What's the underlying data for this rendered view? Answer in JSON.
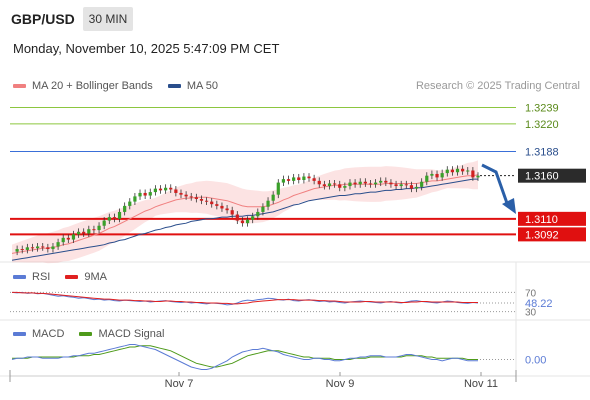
{
  "header": {
    "symbol": "GBP/USD",
    "interval": "30 MIN",
    "datetime": "Monday, November 10, 2025 5:47:09 PM CET",
    "credit": "Research © 2025 Trading Central"
  },
  "legends": {
    "price": [
      {
        "label": "MA 20 + Bollinger Bands",
        "color": "#f08080"
      },
      {
        "label": "MA 50",
        "color": "#2a4e8c"
      }
    ],
    "rsi": [
      {
        "label": "RSI",
        "color": "#5b7bd5"
      },
      {
        "label": "9MA",
        "color": "#e02020"
      }
    ],
    "macd": [
      {
        "label": "MACD",
        "color": "#5b7bd5"
      },
      {
        "label": "MACD Signal",
        "color": "#4e9a1a"
      }
    ]
  },
  "chart_data": {
    "type": "line",
    "description_series": "GBP/USD 30-minute candles with MA20, Bollinger Bands, MA50, RSI and MACD",
    "price_ylim": [
      1.306,
      1.325
    ],
    "levels": [
      {
        "value": 1.3239,
        "label": "1.3239",
        "kind": "resistance",
        "color": "#8cc63f"
      },
      {
        "value": 1.322,
        "label": "1.3220",
        "kind": "resistance",
        "color": "#8cc63f"
      },
      {
        "value": 1.3188,
        "label": "1.3188",
        "kind": "pivot",
        "color": "#3a6fd8"
      },
      {
        "value": 1.316,
        "label": "1.3160",
        "kind": "last",
        "color": "#222222"
      },
      {
        "value": 1.311,
        "label": "1.3110",
        "kind": "support",
        "color": "#e01010"
      },
      {
        "value": 1.3092,
        "label": "1.3092",
        "kind": "support",
        "color": "#e01010"
      }
    ],
    "close": [
      1.3072,
      1.3075,
      1.3074,
      1.3077,
      1.3076,
      1.3078,
      1.3077,
      1.3075,
      1.3078,
      1.3083,
      1.3088,
      1.3086,
      1.3092,
      1.3095,
      1.3093,
      1.3098,
      1.3097,
      1.3102,
      1.3108,
      1.3112,
      1.311,
      1.3118,
      1.3125,
      1.313,
      1.3136,
      1.314,
      1.3137,
      1.3141,
      1.3145,
      1.3143,
      1.3146,
      1.3144,
      1.314,
      1.3138,
      1.3136,
      1.3135,
      1.3133,
      1.3131,
      1.313,
      1.3127,
      1.3125,
      1.3122,
      1.312,
      1.3115,
      1.3108,
      1.3105,
      1.3109,
      1.3113,
      1.3118,
      1.3124,
      1.3131,
      1.3138,
      1.3152,
      1.3156,
      1.3154,
      1.3158,
      1.3155,
      1.3159,
      1.3157,
      1.3154,
      1.315,
      1.3148,
      1.3151,
      1.315,
      1.3146,
      1.3148,
      1.3152,
      1.315,
      1.3153,
      1.3151,
      1.315,
      1.3152,
      1.3154,
      1.3152,
      1.315,
      1.3148,
      1.315,
      1.3149,
      1.3145,
      1.3147,
      1.3153,
      1.316,
      1.3162,
      1.3158,
      1.3163,
      1.3167,
      1.3164,
      1.3168,
      1.3165,
      1.3166,
      1.3158,
      1.316
    ],
    "ma20": [
      1.307,
      1.3071,
      1.3072,
      1.3073,
      1.3074,
      1.3075,
      1.3076,
      1.3076,
      1.3077,
      1.3078,
      1.308,
      1.3081,
      1.3083,
      1.3085,
      1.3087,
      1.3089,
      1.3091,
      1.3093,
      1.3096,
      1.3099,
      1.3101,
      1.3104,
      1.3107,
      1.311,
      1.3113,
      1.3116,
      1.3119,
      1.3121,
      1.3124,
      1.3126,
      1.3128,
      1.313,
      1.3132,
      1.3133,
      1.3134,
      1.3134,
      1.3135,
      1.3135,
      1.3135,
      1.3134,
      1.3133,
      1.3132,
      1.3131,
      1.3129,
      1.3127,
      1.3125,
      1.3124,
      1.3124,
      1.3124,
      1.3124,
      1.3125,
      1.3127,
      1.3129,
      1.3132,
      1.3134,
      1.3137,
      1.3139,
      1.3141,
      1.3143,
      1.3145,
      1.3146,
      1.3147,
      1.3148,
      1.3149,
      1.3149,
      1.315,
      1.315,
      1.315,
      1.315,
      1.315,
      1.315,
      1.315,
      1.315,
      1.3151,
      1.3151,
      1.3151,
      1.3151,
      1.3151,
      1.3151,
      1.3151,
      1.3152,
      1.3153,
      1.3154,
      1.3154,
      1.3155,
      1.3156,
      1.3157,
      1.3158,
      1.3159,
      1.316,
      1.316,
      1.3161
    ],
    "ma50": [
      1.3062,
      1.3063,
      1.3064,
      1.3065,
      1.3066,
      1.3067,
      1.3068,
      1.3069,
      1.307,
      1.3071,
      1.3072,
      1.3073,
      1.3074,
      1.3075,
      1.3076,
      1.3077,
      1.3078,
      1.3079,
      1.308,
      1.3082,
      1.3083,
      1.3085,
      1.3086,
      1.3088,
      1.309,
      1.3092,
      1.3093,
      1.3095,
      1.3097,
      1.3098,
      1.31,
      1.3101,
      1.3103,
      1.3104,
      1.3105,
      1.3107,
      1.3108,
      1.3109,
      1.311,
      1.311,
      1.3111,
      1.3112,
      1.3112,
      1.3113,
      1.3113,
      1.3113,
      1.3114,
      1.3114,
      1.3115,
      1.3116,
      1.3117,
      1.3118,
      1.312,
      1.3122,
      1.3124,
      1.3126,
      1.3127,
      1.3129,
      1.3131,
      1.3132,
      1.3133,
      1.3134,
      1.3135,
      1.3136,
      1.3137,
      1.3137,
      1.3138,
      1.3139,
      1.3139,
      1.314,
      1.3141,
      1.3141,
      1.3142,
      1.3143,
      1.3143,
      1.3144,
      1.3144,
      1.3145,
      1.3145,
      1.3146,
      1.3146,
      1.3147,
      1.3148,
      1.3149,
      1.315,
      1.3151,
      1.3152,
      1.3153,
      1.3154,
      1.3155,
      1.3156,
      1.3156
    ],
    "bb_width": 0.0017,
    "x_ticks": [
      "Nov 7",
      "Nov 9",
      "Nov 11"
    ],
    "rsi": {
      "ylim": [
        25,
        75
      ],
      "levels": [
        70,
        30
      ],
      "level_labels": [
        "70",
        "30"
      ],
      "last_label": "48.22",
      "values": [
        70,
        69,
        70,
        68,
        69,
        67,
        68,
        66,
        64,
        62,
        63,
        61,
        60,
        58,
        59,
        57,
        55,
        56,
        54,
        55,
        53,
        52,
        54,
        53,
        52,
        51,
        52,
        50,
        51,
        52,
        53,
        51,
        50,
        49,
        50,
        48,
        49,
        47,
        46,
        48,
        47,
        46,
        44,
        45,
        48,
        52,
        54,
        53,
        55,
        56,
        58,
        57,
        55,
        54,
        56,
        53,
        52,
        54,
        55,
        53,
        51,
        52,
        50,
        51,
        49,
        48,
        50,
        51,
        52,
        51,
        50,
        49,
        48,
        50,
        51,
        49,
        48,
        50,
        52,
        53,
        51,
        50,
        49,
        48,
        50,
        52,
        51,
        49,
        48,
        47,
        49,
        48
      ],
      "ma": [
        70,
        70,
        69,
        69,
        69,
        68,
        68,
        67,
        66,
        65,
        64,
        63,
        62,
        61,
        60,
        59,
        58,
        57,
        56,
        56,
        55,
        54,
        54,
        54,
        53,
        53,
        52,
        52,
        51,
        51,
        52,
        52,
        51,
        51,
        50,
        50,
        49,
        49,
        48,
        48,
        48,
        47,
        47,
        46,
        46,
        47,
        48,
        50,
        51,
        52,
        53,
        54,
        55,
        55,
        55,
        55,
        54,
        54,
        54,
        54,
        53,
        53,
        52,
        52,
        51,
        50,
        50,
        50,
        50,
        51,
        51,
        50,
        50,
        50,
        50,
        50,
        49,
        49,
        50,
        50,
        51,
        51,
        50,
        50,
        50,
        50,
        50,
        50,
        49,
        49,
        49,
        49
      ]
    },
    "macd": {
      "ylim": [
        -0.001,
        0.0014
      ],
      "zero_label": "0.00",
      "macd": [
        0.0,
        0.0001,
        0.0001,
        0.0002,
        0.0002,
        0.0002,
        0.0001,
        0.0001,
        0.0001,
        0.0001,
        0.0002,
        0.0002,
        0.0003,
        0.0003,
        0.0004,
        0.0005,
        0.0005,
        0.0006,
        0.0007,
        0.0008,
        0.0009,
        0.001,
        0.0011,
        0.0012,
        0.0012,
        0.0011,
        0.001,
        0.0009,
        0.0008,
        0.0006,
        0.0004,
        0.0002,
        0.0,
        -0.0002,
        -0.0004,
        -0.0006,
        -0.0007,
        -0.0008,
        -0.0008,
        -0.0007,
        -0.0005,
        -0.0003,
        -0.0001,
        0.0002,
        0.0004,
        0.0006,
        0.0007,
        0.0008,
        0.0008,
        0.0009,
        0.0008,
        0.0007,
        0.0006,
        0.0004,
        0.0003,
        0.0002,
        0.0001,
        0.0,
        0.0,
        0.0001,
        0.0001,
        0.0,
        0.0,
        -0.0001,
        -0.0001,
        0.0,
        0.0001,
        0.0001,
        0.0002,
        0.0002,
        0.0003,
        0.0003,
        0.0003,
        0.0002,
        0.0002,
        0.0002,
        0.0003,
        0.0004,
        0.0004,
        0.0003,
        0.0002,
        0.0001,
        0.0,
        0.0,
        -0.0001,
        0.0,
        0.0001,
        0.0001,
        0.0,
        -0.0001,
        -0.0001,
        -0.0001
      ],
      "signal": [
        0.0001,
        0.0001,
        0.0001,
        0.0001,
        0.0002,
        0.0002,
        0.0002,
        0.0002,
        0.0002,
        0.0002,
        0.0002,
        0.0002,
        0.0002,
        0.0003,
        0.0003,
        0.0003,
        0.0004,
        0.0004,
        0.0005,
        0.0006,
        0.0007,
        0.0008,
        0.0009,
        0.001,
        0.001,
        0.0011,
        0.0011,
        0.0011,
        0.001,
        0.0009,
        0.0008,
        0.0007,
        0.0005,
        0.0003,
        0.0001,
        -0.0001,
        -0.0003,
        -0.0004,
        -0.0005,
        -0.0006,
        -0.0006,
        -0.0005,
        -0.0004,
        -0.0003,
        -0.0001,
        0.0001,
        0.0003,
        0.0004,
        0.0005,
        0.0006,
        0.0007,
        0.0007,
        0.0007,
        0.0006,
        0.0005,
        0.0004,
        0.0003,
        0.0002,
        0.0002,
        0.0001,
        0.0001,
        0.0001,
        0.0001,
        0.0,
        0.0,
        0.0,
        0.0,
        0.0001,
        0.0001,
        0.0001,
        0.0002,
        0.0002,
        0.0002,
        0.0002,
        0.0002,
        0.0002,
        0.0002,
        0.0003,
        0.0003,
        0.0003,
        0.0003,
        0.0002,
        0.0002,
        0.0001,
        0.0001,
        0.0001,
        0.0001,
        0.0001,
        0.0001,
        0.0,
        0.0,
        0.0
      ]
    }
  }
}
